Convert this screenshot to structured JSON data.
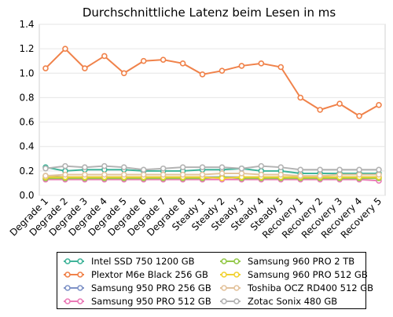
{
  "chart_data": {
    "type": "line",
    "title": "Durchschnittliche Latenz beim Lesen in ms",
    "xlabel": "",
    "ylabel": "",
    "ylim": [
      0,
      1.4
    ],
    "yticks": [
      "0.0",
      "0.2",
      "0.4",
      "0.6",
      "0.8",
      "1.0",
      "1.2",
      "1.4"
    ],
    "grid": true,
    "legend_position": "bottom",
    "categories": [
      "Degrade 1",
      "Degrade 2",
      "Degrade 3",
      "Degrade 4",
      "Degrade 5",
      "Degrade 6",
      "Degrade 7",
      "Degrade 8",
      "Steady 1",
      "Steady 2",
      "Steady 3",
      "Steady 4",
      "Steady 5",
      "Recovery 1",
      "Recovery 2",
      "Recovery 3",
      "Recovery 4",
      "Recovery 5"
    ],
    "series": [
      {
        "name": "Intel SSD 750 1200 GB",
        "color": "#41b49a",
        "values": [
          0.23,
          0.2,
          0.21,
          0.21,
          0.21,
          0.2,
          0.2,
          0.2,
          0.21,
          0.21,
          0.22,
          0.2,
          0.2,
          0.18,
          0.18,
          0.18,
          0.18,
          0.18
        ]
      },
      {
        "name": "Plextor M6e Black 256 GB",
        "color": "#f0824a",
        "values": [
          1.04,
          1.2,
          1.04,
          1.14,
          1.0,
          1.1,
          1.11,
          1.08,
          0.99,
          1.02,
          1.06,
          1.08,
          1.05,
          0.8,
          0.7,
          0.75,
          0.65,
          0.74
        ]
      },
      {
        "name": "Samsung 950 PRO 256 GB",
        "color": "#7f93c7",
        "values": [
          0.16,
          0.15,
          0.15,
          0.15,
          0.15,
          0.15,
          0.15,
          0.15,
          0.15,
          0.15,
          0.15,
          0.15,
          0.15,
          0.15,
          0.15,
          0.15,
          0.15,
          0.15
        ]
      },
      {
        "name": "Samsung 950 PRO 512 GB",
        "color": "#ea7ab7",
        "values": [
          0.13,
          0.13,
          0.13,
          0.13,
          0.13,
          0.13,
          0.13,
          0.13,
          0.13,
          0.13,
          0.13,
          0.13,
          0.13,
          0.13,
          0.13,
          0.13,
          0.13,
          0.12
        ]
      },
      {
        "name": "Samsung 960 PRO 2 TB",
        "color": "#94c84a",
        "values": [
          0.14,
          0.14,
          0.14,
          0.14,
          0.14,
          0.14,
          0.14,
          0.14,
          0.14,
          0.15,
          0.14,
          0.14,
          0.14,
          0.14,
          0.14,
          0.14,
          0.14,
          0.14
        ]
      },
      {
        "name": "Samsung 960 PRO 512 GB",
        "color": "#f1d232",
        "values": [
          0.15,
          0.15,
          0.15,
          0.15,
          0.15,
          0.15,
          0.15,
          0.15,
          0.15,
          0.14,
          0.15,
          0.15,
          0.15,
          0.15,
          0.15,
          0.15,
          0.15,
          0.15
        ]
      },
      {
        "name": "Toshiba OCZ RD400 512 GB",
        "color": "#e3c39c",
        "values": [
          0.16,
          0.17,
          0.17,
          0.17,
          0.17,
          0.17,
          0.17,
          0.17,
          0.17,
          0.18,
          0.18,
          0.17,
          0.17,
          0.16,
          0.16,
          0.17,
          0.17,
          0.17
        ]
      },
      {
        "name": "Zotac Sonix 480 GB",
        "color": "#b3b3b3",
        "values": [
          0.22,
          0.24,
          0.23,
          0.24,
          0.23,
          0.21,
          0.22,
          0.23,
          0.23,
          0.23,
          0.22,
          0.24,
          0.23,
          0.21,
          0.21,
          0.21,
          0.21,
          0.21
        ]
      }
    ]
  }
}
